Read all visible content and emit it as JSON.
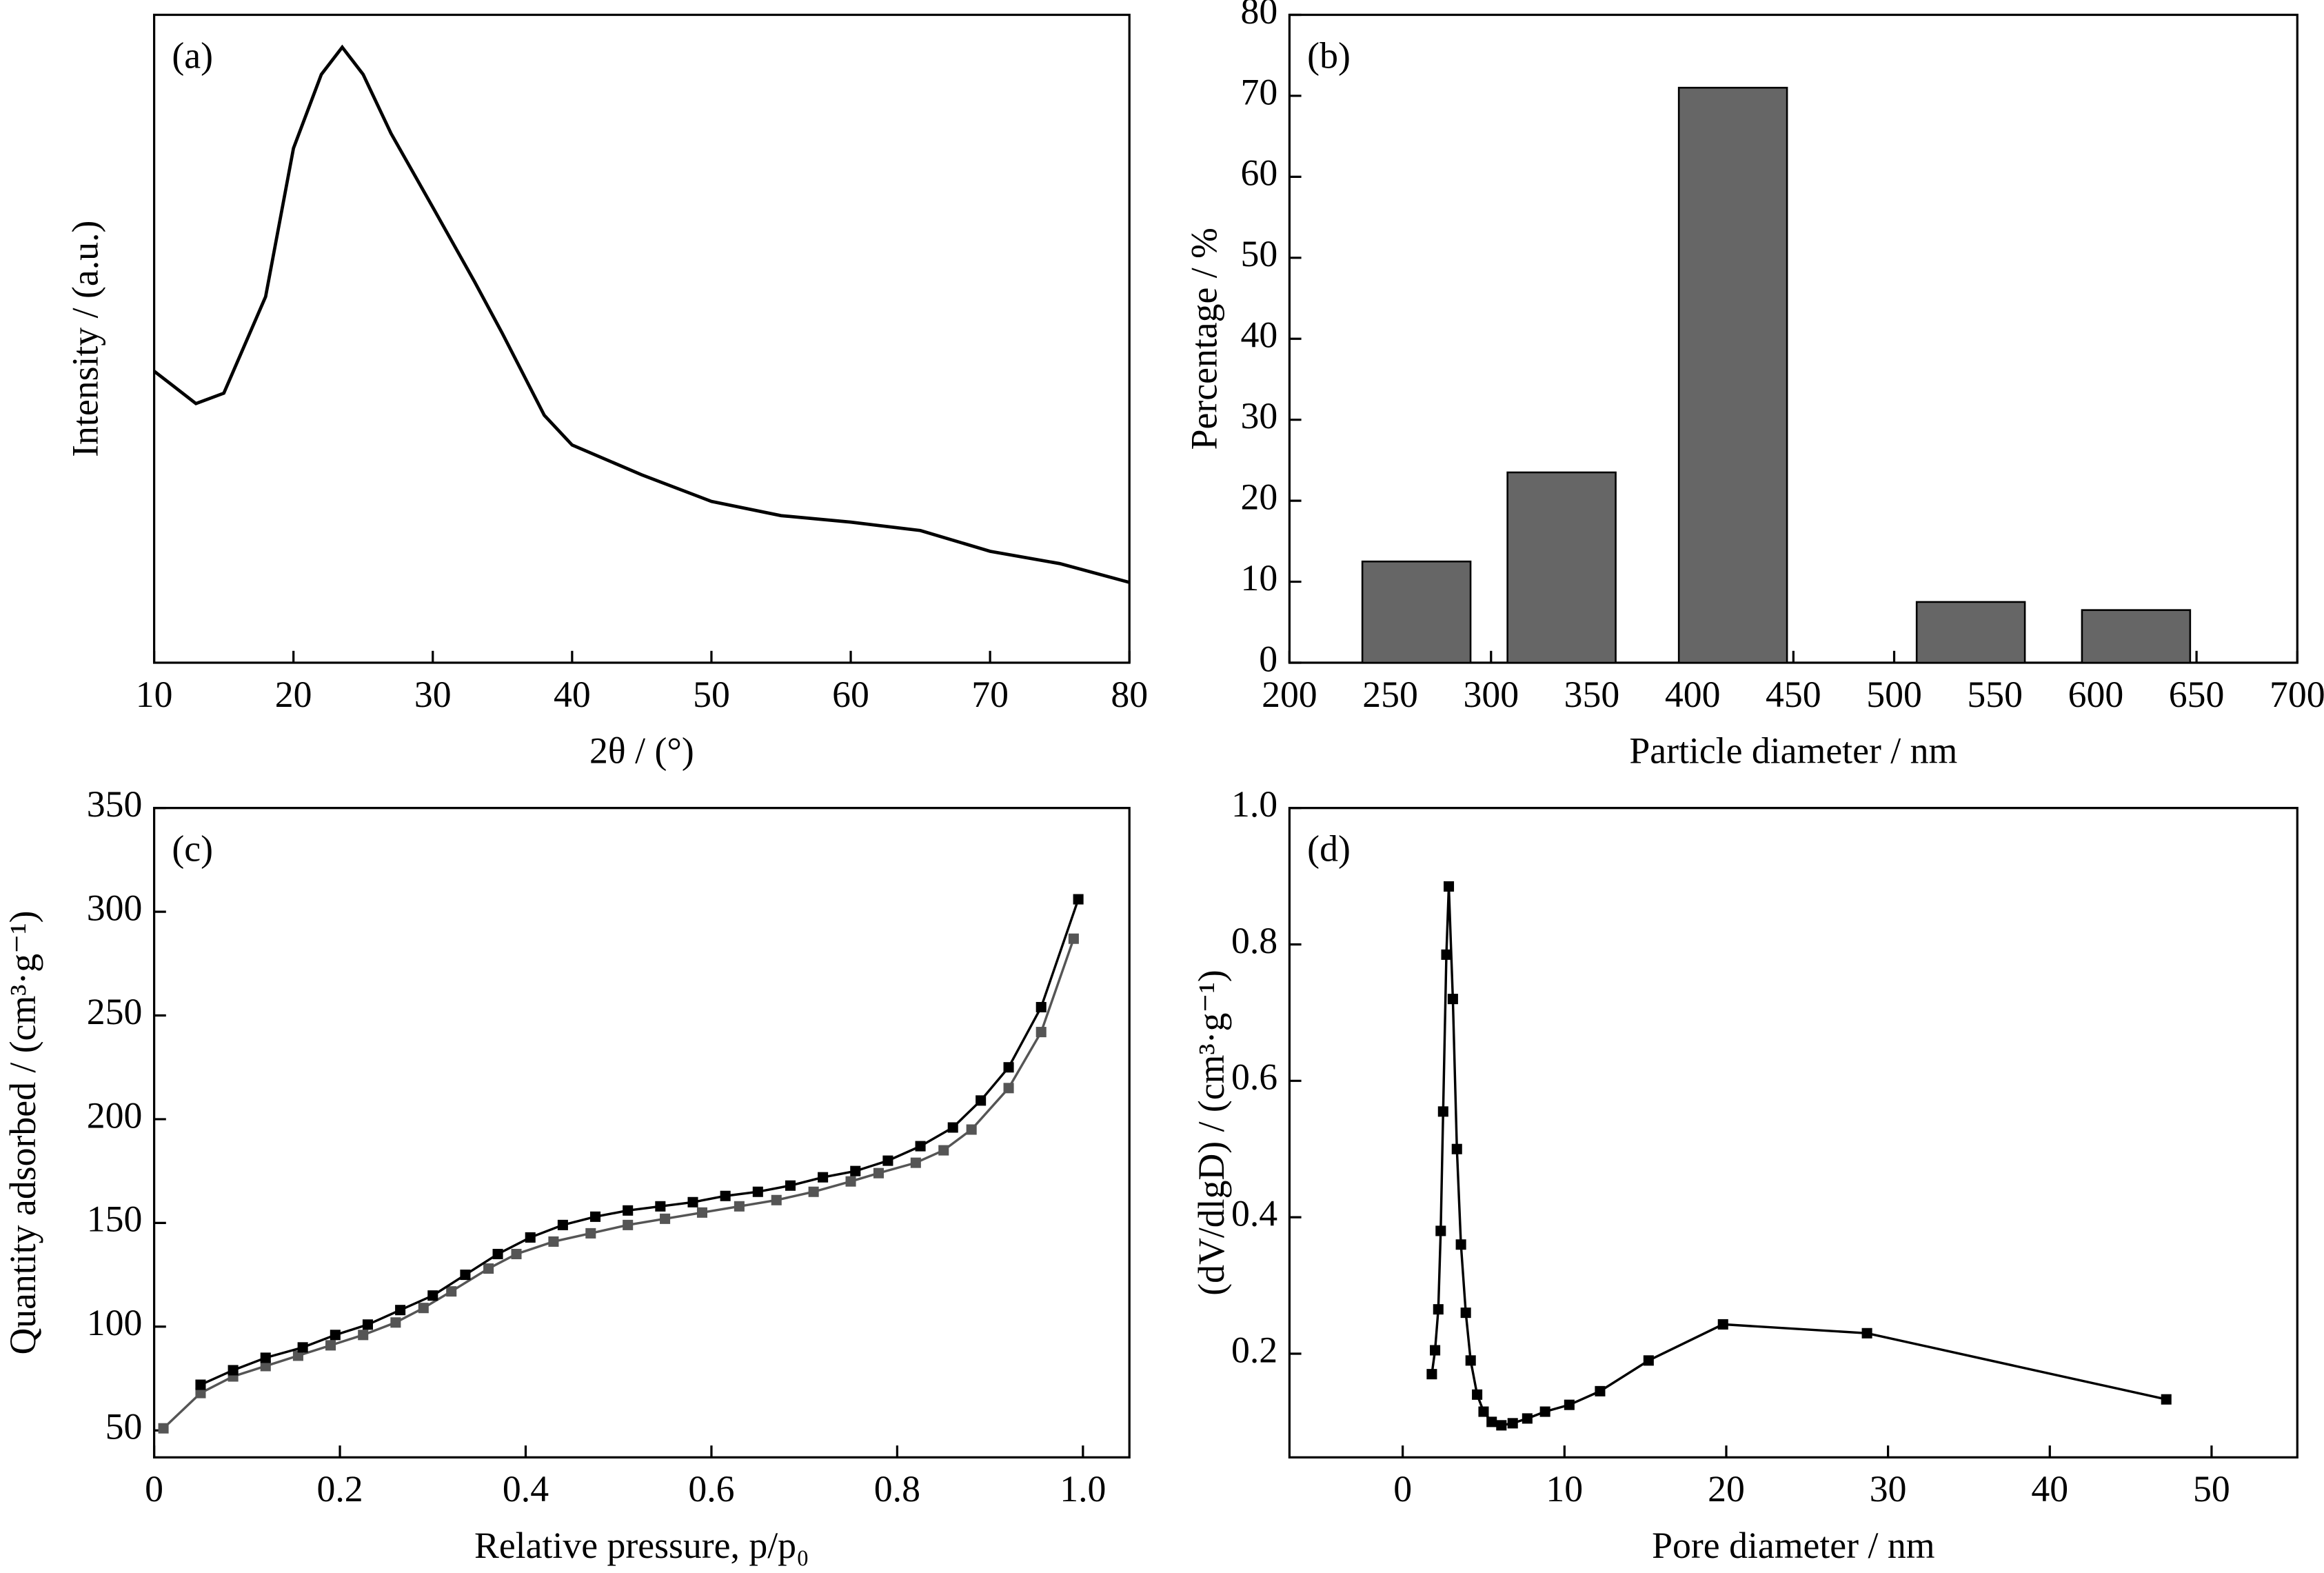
{
  "chart_data": [
    {
      "type": "line",
      "panel_label": "(a)",
      "xlabel": "2θ / (°)",
      "ylabel": "Intensity / (a.u.)",
      "xlim": [
        10,
        80
      ],
      "xticks": [
        10,
        20,
        30,
        40,
        50,
        60,
        70,
        80
      ],
      "ylim": [
        0,
        100
      ],
      "series": [
        {
          "color": "#000000",
          "x": [
            10,
            13,
            15,
            18,
            20,
            22,
            23.5,
            25,
            27,
            30,
            33,
            35,
            38,
            40,
            45,
            50,
            55,
            60,
            65,
            70,
            75,
            80
          ],
          "values": [
            45,
            40,
            41.6,
            56.5,
            79.4,
            90.8,
            95,
            90.8,
            81.7,
            70.3,
            58.8,
            50.8,
            38.2,
            33.6,
            29,
            24.9,
            22.7,
            21.7,
            20.4,
            17.2,
            15.3,
            12.4
          ]
        }
      ]
    },
    {
      "type": "bar",
      "panel_label": "(b)",
      "xlabel": "Particle diameter  / nm",
      "ylabel": "Percentage / %",
      "xlim": [
        200,
        700
      ],
      "xticks": [
        200,
        250,
        300,
        350,
        400,
        450,
        500,
        550,
        600,
        650,
        700
      ],
      "ylim": [
        0,
        80
      ],
      "yticks": [
        0,
        10,
        20,
        30,
        40,
        50,
        60,
        70,
        80
      ],
      "color": "#666666",
      "x": [
        263,
        335,
        420,
        538,
        620
      ],
      "values": [
        12.5,
        23.5,
        71,
        7.5,
        6.5
      ]
    },
    {
      "type": "line",
      "marker": "square",
      "panel_label": "(c)",
      "xlabel": "Relative pressure, p/p₀",
      "ylabel": "Quantity adsorbed / (cm³·g⁻¹)",
      "xlim": [
        0,
        1.05
      ],
      "xticks": [
        0,
        0.2,
        0.4,
        0.6,
        0.8,
        {
          "value": 1,
          "label": "1.0"
        }
      ],
      "ylim": [
        37,
        350
      ],
      "yticks": [
        50,
        100,
        150,
        200,
        250,
        300,
        350
      ],
      "series": [
        {
          "color": "#555555",
          "x": [
            0.01,
            0.05,
            0.085,
            0.12,
            0.155,
            0.19,
            0.225,
            0.26,
            0.29,
            0.32,
            0.36,
            0.39,
            0.43,
            0.47,
            0.51,
            0.55,
            0.59,
            0.63,
            0.67,
            0.71,
            0.75,
            0.78,
            0.82,
            0.85,
            0.88,
            0.92,
            0.955,
            0.99
          ],
          "values": [
            51,
            68,
            76,
            81,
            86,
            91,
            96,
            102,
            109,
            117,
            128,
            135,
            141,
            145,
            149,
            152,
            155,
            158,
            161,
            165,
            170,
            174,
            179,
            185,
            195,
            215,
            242,
            287
          ]
        },
        {
          "color": "#000000",
          "x": [
            0.995,
            0.955,
            0.92,
            0.89,
            0.86,
            0.825,
            0.79,
            0.755,
            0.72,
            0.685,
            0.65,
            0.615,
            0.58,
            0.545,
            0.51,
            0.475,
            0.44,
            0.405,
            0.37,
            0.335,
            0.3,
            0.265,
            0.23,
            0.195,
            0.16,
            0.12,
            0.085,
            0.05
          ],
          "values": [
            306,
            254,
            225,
            209,
            196,
            187,
            180,
            175,
            172,
            168,
            165,
            163,
            160,
            158,
            156,
            153,
            149,
            143,
            135,
            125,
            115,
            108,
            101,
            96,
            90,
            85,
            79,
            72
          ]
        }
      ]
    },
    {
      "type": "line",
      "marker": "square",
      "panel_label": "(d)",
      "xlabel": "Pore diameter / nm",
      "ylabel": "(dV/dlgD) / (cm³·g⁻¹)",
      "xlim": [
        -7,
        55.3
      ],
      "xticks": [
        0,
        10,
        20,
        30,
        40,
        50
      ],
      "ylim": [
        0.048,
        1.0
      ],
      "yticks": [
        0.2,
        0.4,
        0.6,
        0.8,
        {
          "value": 1,
          "label": "1.0"
        }
      ],
      "series": [
        {
          "color": "#000000",
          "x": [
            1.8,
            2.0,
            2.2,
            2.35,
            2.5,
            2.7,
            2.85,
            3.1,
            3.35,
            3.6,
            3.9,
            4.2,
            4.6,
            5.0,
            5.5,
            6.1,
            6.8,
            7.7,
            8.8,
            10.3,
            12.2,
            15.2,
            19.8,
            28.7,
            47.2
          ],
          "values": [
            0.17,
            0.205,
            0.265,
            0.38,
            0.555,
            0.785,
            0.885,
            0.72,
            0.5,
            0.36,
            0.26,
            0.19,
            0.14,
            0.115,
            0.1,
            0.095,
            0.098,
            0.105,
            0.115,
            0.125,
            0.145,
            0.19,
            0.243,
            0.23,
            0.133
          ]
        }
      ]
    }
  ]
}
